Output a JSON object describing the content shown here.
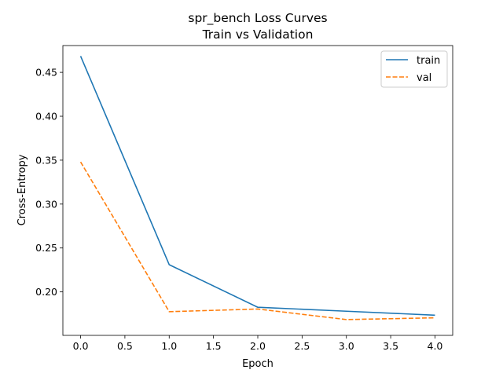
{
  "chart_data": {
    "type": "line",
    "title": "spr_bench Loss Curves",
    "subtitle": "Train vs Validation",
    "xlabel": "Epoch",
    "ylabel": "Cross-Entropy",
    "xlim": [
      -0.2,
      4.2
    ],
    "ylim": [
      0.1505,
      0.4805
    ],
    "xticks": [
      0.0,
      0.5,
      1.0,
      1.5,
      2.0,
      2.5,
      3.0,
      3.5,
      4.0
    ],
    "xtick_labels": [
      "0.0",
      "0.5",
      "1.0",
      "1.5",
      "2.0",
      "2.5",
      "3.0",
      "3.5",
      "4.0"
    ],
    "yticks": [
      0.2,
      0.25,
      0.3,
      0.35,
      0.4,
      0.45
    ],
    "ytick_labels": [
      "0.20",
      "0.25",
      "0.30",
      "0.35",
      "0.40",
      "0.45"
    ],
    "grid": false,
    "legend": "top-right",
    "series": [
      {
        "name": "train",
        "color": "#1f77b4",
        "dash": "solid",
        "x": [
          0,
          1,
          2,
          3,
          4
        ],
        "y": [
          0.4685,
          0.231,
          0.1825,
          0.178,
          0.1735
        ]
      },
      {
        "name": "val",
        "color": "#ff7f0e",
        "dash": "dashed",
        "x": [
          0,
          1,
          2,
          3,
          4
        ],
        "y": [
          0.348,
          0.1775,
          0.1805,
          0.1685,
          0.1705
        ]
      }
    ]
  }
}
